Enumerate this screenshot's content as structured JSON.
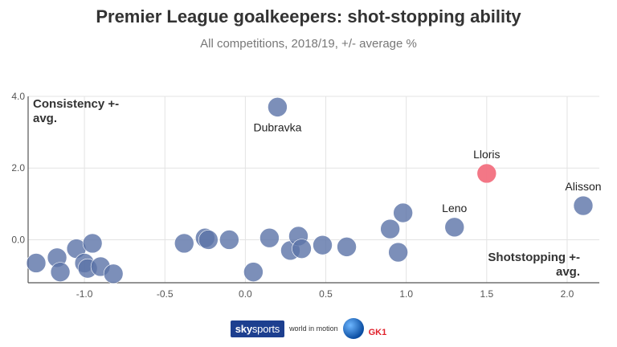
{
  "title": "Premier League goalkeepers: shot-stopping ability",
  "subtitle": "All competitions, 2018/19, +/- average %",
  "footer": {
    "brand_sky": "sky",
    "brand_sports": "sports",
    "brand_world": "world in motion",
    "brand_gk": "GK1"
  },
  "chart_data": {
    "type": "scatter",
    "ylabel": "Consistency +- avg.",
    "xlabel": "Shotstopping +- avg.",
    "xlim": [
      -1.35,
      2.2
    ],
    "ylim": [
      -1.2,
      4.0
    ],
    "xticks": [
      "-1.0",
      "-0.5",
      "0.0",
      "0.5",
      "1.0",
      "1.5",
      "2.0"
    ],
    "yticks": [
      "0.0",
      "2.0",
      "4.0"
    ],
    "grid": true,
    "point_color": "#5b73a8",
    "highlight_color": "#f2707f",
    "points": [
      {
        "x": -1.3,
        "y": -0.65
      },
      {
        "x": -1.17,
        "y": -0.5
      },
      {
        "x": -1.15,
        "y": -0.9
      },
      {
        "x": -1.05,
        "y": -0.25
      },
      {
        "x": -1.0,
        "y": -0.65
      },
      {
        "x": -0.98,
        "y": -0.8
      },
      {
        "x": -0.95,
        "y": -0.1
      },
      {
        "x": -0.9,
        "y": -0.75
      },
      {
        "x": -0.82,
        "y": -0.95
      },
      {
        "x": -0.38,
        "y": -0.1
      },
      {
        "x": -0.25,
        "y": 0.05
      },
      {
        "x": -0.23,
        "y": 0.0
      },
      {
        "x": -0.1,
        "y": 0.0
      },
      {
        "x": 0.05,
        "y": -0.9
      },
      {
        "x": 0.15,
        "y": 0.05
      },
      {
        "x": 0.2,
        "y": 3.7,
        "label": "Dubravka"
      },
      {
        "x": 0.28,
        "y": -0.3
      },
      {
        "x": 0.33,
        "y": 0.1
      },
      {
        "x": 0.35,
        "y": -0.25
      },
      {
        "x": 0.48,
        "y": -0.15
      },
      {
        "x": 0.63,
        "y": -0.2
      },
      {
        "x": 0.9,
        "y": 0.3
      },
      {
        "x": 0.95,
        "y": -0.35
      },
      {
        "x": 0.98,
        "y": 0.75
      },
      {
        "x": 1.3,
        "y": 0.35,
        "label": "Leno"
      },
      {
        "x": 1.5,
        "y": 1.85,
        "label": "Lloris",
        "highlight": true
      },
      {
        "x": 2.1,
        "y": 0.95,
        "label": "Alisson"
      }
    ]
  }
}
